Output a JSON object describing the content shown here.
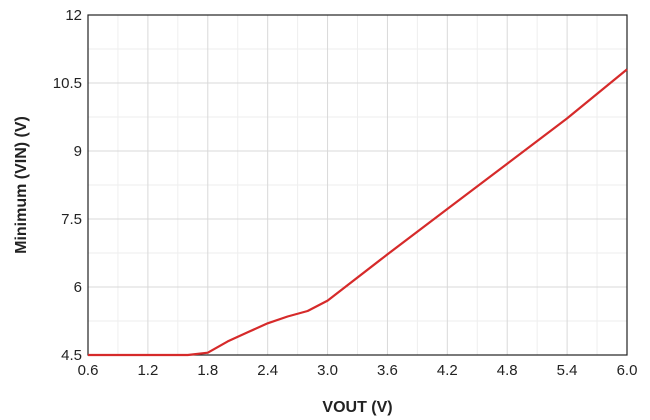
{
  "chart_data": {
    "type": "line",
    "xlabel": "VOUT (V)",
    "ylabel": "Minimum (VIN) (V)",
    "xlim": [
      0.6,
      6.0
    ],
    "ylim": [
      4.5,
      12
    ],
    "x_ticks": [
      "0.6",
      "1.2",
      "1.8",
      "2.4",
      "3.0",
      "3.6",
      "4.2",
      "4.8",
      "5.4",
      "6.0"
    ],
    "y_ticks": [
      "4.5",
      "6",
      "7.5",
      "9",
      "10.5",
      "12"
    ],
    "grid": true,
    "series": [
      {
        "color": "#d62a2a",
        "points": [
          [
            0.6,
            4.5
          ],
          [
            1.2,
            4.5
          ],
          [
            1.6,
            4.5
          ],
          [
            1.8,
            4.55
          ],
          [
            2.0,
            4.8
          ],
          [
            2.2,
            5.0
          ],
          [
            2.4,
            5.2
          ],
          [
            2.6,
            5.35
          ],
          [
            2.8,
            5.47
          ],
          [
            3.0,
            5.7
          ],
          [
            3.6,
            6.72
          ],
          [
            4.2,
            7.72
          ],
          [
            4.8,
            8.72
          ],
          [
            5.4,
            9.72
          ],
          [
            6.0,
            10.8
          ]
        ]
      }
    ]
  }
}
